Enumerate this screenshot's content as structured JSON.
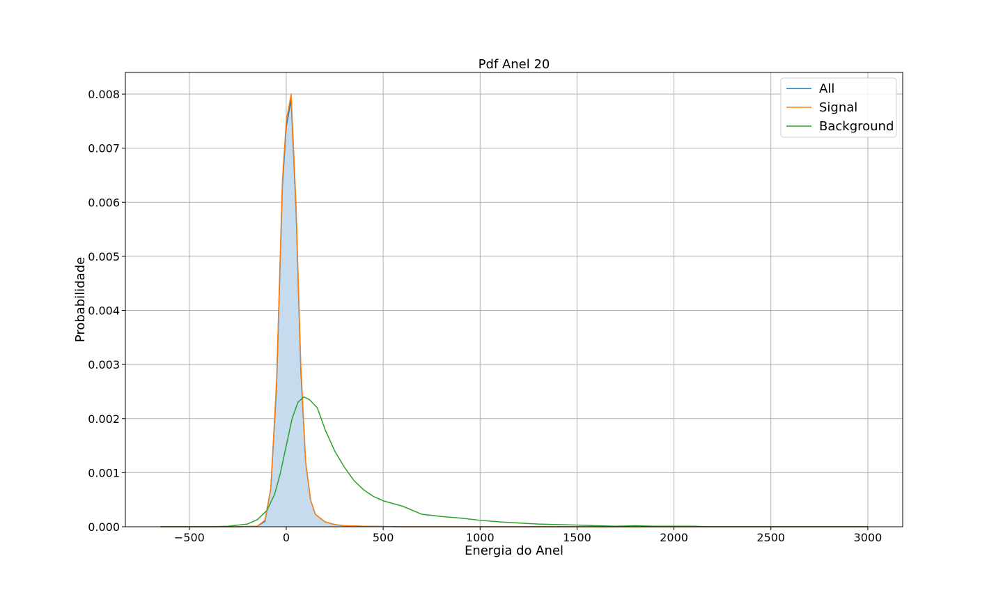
{
  "chart_data": {
    "type": "line",
    "title": "Pdf Anel 20",
    "xlabel": "Energia do Anel",
    "ylabel": "Probabilidade",
    "xlim": [
      -830,
      3180
    ],
    "ylim": [
      0,
      0.0084
    ],
    "xticks": [
      -500,
      0,
      500,
      1000,
      1500,
      2000,
      2500,
      3000
    ],
    "xtick_labels": [
      "−500",
      "0",
      "500",
      "1000",
      "1500",
      "2000",
      "2500",
      "3000"
    ],
    "yticks": [
      0,
      0.001,
      0.002,
      0.003,
      0.004,
      0.005,
      0.006,
      0.007,
      0.008
    ],
    "ytick_labels": [
      "0.000",
      "0.001",
      "0.002",
      "0.003",
      "0.004",
      "0.005",
      "0.006",
      "0.007",
      "0.008"
    ],
    "grid": true,
    "legend_position": "top-right",
    "colors": {
      "All": "#1f77b4",
      "Signal": "#ff7f0e",
      "Background": "#2ca02c",
      "fill": "#c6dbed",
      "grid": "#b0b0b0"
    },
    "series": [
      {
        "name": "All",
        "filled": true,
        "x": [
          -650,
          -400,
          -250,
          -150,
          -110,
          -80,
          -50,
          -20,
          0,
          25,
          50,
          75,
          100,
          125,
          150,
          200,
          250,
          300,
          400,
          600,
          1000,
          2000,
          3000
        ],
        "y": [
          0,
          0,
          0,
          1e-05,
          0.0001,
          0.0007,
          0.0026,
          0.0063,
          0.0074,
          0.0079,
          0.0059,
          0.0029,
          0.0012,
          0.0005,
          0.00023,
          9e-05,
          4e-05,
          2e-05,
          1e-05,
          0,
          0,
          0,
          0
        ]
      },
      {
        "name": "Signal",
        "x": [
          -650,
          -400,
          -250,
          -150,
          -110,
          -80,
          -50,
          -20,
          0,
          25,
          50,
          75,
          100,
          125,
          150,
          200,
          250,
          300,
          400,
          600,
          1000,
          2000,
          3000
        ],
        "y": [
          0,
          0,
          0,
          1e-05,
          0.00012,
          0.0007,
          0.0027,
          0.0064,
          0.0075,
          0.008,
          0.006,
          0.003,
          0.0012,
          0.0005,
          0.00023,
          9e-05,
          4e-05,
          2e-05,
          1e-05,
          0,
          0,
          0,
          0
        ]
      },
      {
        "name": "Background",
        "x": [
          -650,
          -400,
          -300,
          -200,
          -150,
          -100,
          -60,
          -30,
          0,
          30,
          60,
          90,
          120,
          160,
          200,
          250,
          300,
          350,
          400,
          450,
          500,
          600,
          700,
          800,
          900,
          1000,
          1100,
          1200,
          1300,
          1400,
          1500,
          1600,
          1700,
          1800,
          1900,
          2000,
          2100,
          2200,
          2400,
          2600,
          2800,
          3000
        ],
        "y": [
          0,
          0,
          1e-05,
          5e-05,
          0.00013,
          0.0003,
          0.0006,
          0.001,
          0.0015,
          0.002,
          0.0023,
          0.0024,
          0.00235,
          0.0022,
          0.0018,
          0.0014,
          0.0011,
          0.00085,
          0.00068,
          0.00056,
          0.00048,
          0.00038,
          0.00023,
          0.00019,
          0.00016,
          0.00012,
          9e-05,
          7e-05,
          5e-05,
          4e-05,
          3e-05,
          2e-05,
          1e-05,
          2e-05,
          1e-05,
          1e-05,
          1e-05,
          0,
          0,
          0,
          0,
          0
        ]
      }
    ]
  }
}
